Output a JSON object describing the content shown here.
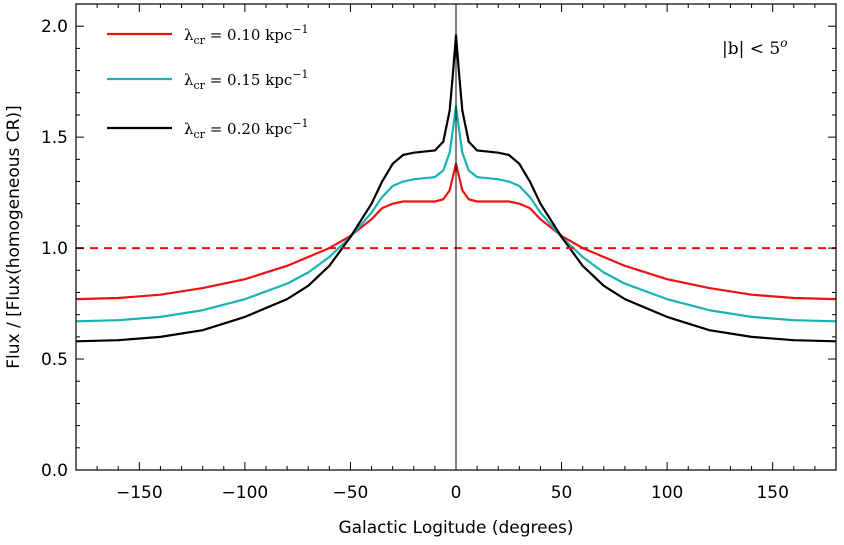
{
  "chart_data": {
    "type": "line",
    "xlabel": "Galactic Logitude  (degrees)",
    "ylabel": "Flux / [Flux(homogeneous CR)]",
    "xlim": [
      -180,
      180
    ],
    "ylim": [
      0.0,
      2.1
    ],
    "xticks": [
      -150,
      -100,
      -50,
      0,
      50,
      100,
      150
    ],
    "xtick_labels": [
      "−150",
      "−100",
      "−50",
      "0",
      "50",
      "100",
      "150"
    ],
    "yticks": [
      0.0,
      0.5,
      1.0,
      1.5,
      2.0
    ],
    "ytick_labels": [
      "0.0",
      "0.5",
      "1.0",
      "1.5",
      "2.0"
    ],
    "grid": false,
    "legend_position": "top-left",
    "annotation": {
      "lhs": "|b| < 5",
      "sup": "o"
    },
    "reference_line": {
      "y": 1.0,
      "style": "dashed",
      "color": "#ee1111"
    },
    "vertical_line": {
      "x": 0,
      "color": "#000000"
    },
    "series": [
      {
        "legend": {
          "lambda": "λ",
          "sub": "cr",
          "value": " = 0.10 kpc",
          "exp": "−1"
        },
        "color": "#ee1111",
        "x": [
          -180,
          -160,
          -140,
          -120,
          -100,
          -80,
          -70,
          -60,
          -50,
          -40,
          -35,
          -30,
          -25,
          -20,
          -15,
          -10,
          -6,
          -3,
          -1.5,
          0,
          1.5,
          3,
          6,
          10,
          15,
          20,
          25,
          30,
          35,
          40,
          50,
          60,
          70,
          80,
          100,
          120,
          140,
          160,
          180
        ],
        "y": [
          0.77,
          0.775,
          0.79,
          0.82,
          0.86,
          0.92,
          0.96,
          1.0,
          1.055,
          1.13,
          1.18,
          1.2,
          1.21,
          1.21,
          1.21,
          1.21,
          1.22,
          1.26,
          1.32,
          1.38,
          1.32,
          1.26,
          1.22,
          1.21,
          1.21,
          1.21,
          1.21,
          1.2,
          1.18,
          1.13,
          1.055,
          1.0,
          0.96,
          0.92,
          0.86,
          0.82,
          0.79,
          0.775,
          0.77
        ]
      },
      {
        "legend": {
          "lambda": "λ",
          "sub": "cr",
          "value": " = 0.15 kpc",
          "exp": "−1"
        },
        "color": "#17b3b3",
        "x": [
          -180,
          -160,
          -140,
          -120,
          -100,
          -80,
          -70,
          -60,
          -50,
          -40,
          -35,
          -30,
          -25,
          -20,
          -15,
          -10,
          -6,
          -3,
          -1.5,
          0,
          1.5,
          3,
          6,
          10,
          15,
          20,
          25,
          30,
          35,
          40,
          50,
          60,
          70,
          80,
          100,
          120,
          140,
          160,
          180
        ],
        "y": [
          0.67,
          0.675,
          0.69,
          0.72,
          0.77,
          0.84,
          0.89,
          0.96,
          1.05,
          1.16,
          1.23,
          1.28,
          1.3,
          1.31,
          1.315,
          1.32,
          1.35,
          1.43,
          1.53,
          1.64,
          1.53,
          1.43,
          1.35,
          1.32,
          1.315,
          1.31,
          1.3,
          1.28,
          1.23,
          1.16,
          1.05,
          0.96,
          0.89,
          0.84,
          0.77,
          0.72,
          0.69,
          0.675,
          0.67
        ]
      },
      {
        "legend": {
          "lambda": "λ",
          "sub": "cr",
          "value": " = 0.20 kpc",
          "exp": "−1"
        },
        "color": "#000000",
        "x": [
          -180,
          -160,
          -140,
          -120,
          -100,
          -80,
          -70,
          -60,
          -50,
          -40,
          -35,
          -30,
          -25,
          -20,
          -15,
          -10,
          -6,
          -3,
          -1.5,
          0,
          1.5,
          3,
          6,
          10,
          15,
          20,
          25,
          30,
          35,
          40,
          50,
          60,
          70,
          80,
          100,
          120,
          140,
          160,
          180
        ],
        "y": [
          0.58,
          0.585,
          0.6,
          0.63,
          0.69,
          0.77,
          0.83,
          0.92,
          1.05,
          1.2,
          1.3,
          1.38,
          1.42,
          1.43,
          1.435,
          1.44,
          1.48,
          1.62,
          1.78,
          1.96,
          1.78,
          1.62,
          1.48,
          1.44,
          1.435,
          1.43,
          1.42,
          1.38,
          1.3,
          1.2,
          1.05,
          0.92,
          0.83,
          0.77,
          0.69,
          0.63,
          0.6,
          0.585,
          0.58
        ]
      }
    ]
  }
}
